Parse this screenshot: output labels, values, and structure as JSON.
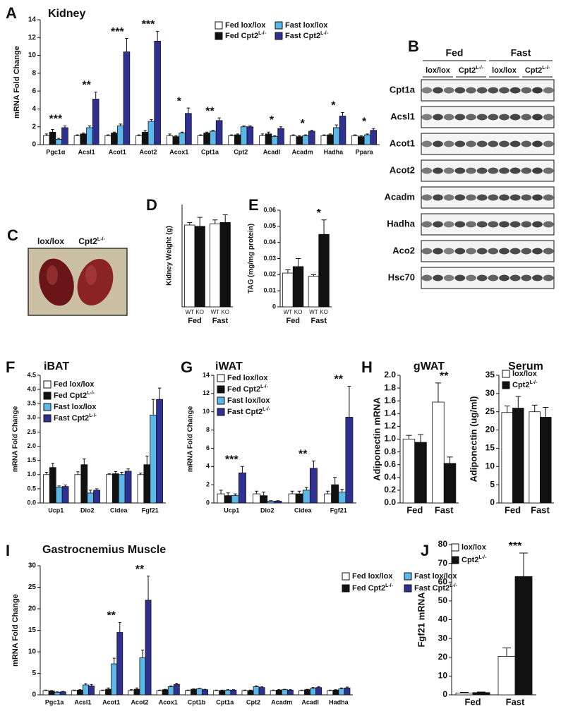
{
  "chart_data": [
    {
      "type": "bar",
      "panel": "A",
      "title": "Kidney",
      "title_color": "#e8262b",
      "ylabel": "mRNA Fold Change",
      "categories": [
        "Pgc1α",
        "Acsl1",
        "Acot1",
        "Acot2",
        "Acox1",
        "Cpt1a",
        "Cpt2",
        "Acadl",
        "Acadm",
        "Hadha",
        "Ppara"
      ],
      "series": [
        {
          "name": "Fed lox/lox",
          "color": "#ffffff",
          "values": [
            1.0,
            1.0,
            1.0,
            1.0,
            1.0,
            1.0,
            1.0,
            1.0,
            1.0,
            1.0,
            1.0
          ],
          "errors": [
            0.2,
            0.1,
            0.1,
            0.1,
            0.2,
            0.1,
            0.1,
            0.2,
            0.1,
            0.1,
            0.1
          ]
        },
        {
          "name": "Fed Cpt2",
          "superscript": "L-/-",
          "color": "#111111",
          "values": [
            1.4,
            1.2,
            1.3,
            1.4,
            0.9,
            1.3,
            1.1,
            1.2,
            0.9,
            1.1,
            0.9
          ],
          "errors": [
            0.3,
            0.1,
            0.1,
            0.2,
            0.1,
            0.1,
            0.1,
            0.2,
            0.1,
            0.1,
            0.1
          ]
        },
        {
          "name": "Fast lox/lox",
          "color": "#5bb8e8",
          "values": [
            0.6,
            1.9,
            2.1,
            2.6,
            1.3,
            1.5,
            2.0,
            0.9,
            1.0,
            1.9,
            1.1
          ],
          "errors": [
            0.1,
            0.2,
            0.2,
            0.2,
            0.1,
            0.1,
            0.1,
            0.1,
            0.1,
            0.3,
            0.1
          ]
        },
        {
          "name": "Fast Cpt2",
          "superscript": "L-/-",
          "color": "#2e3192",
          "values": [
            1.9,
            5.1,
            10.4,
            11.6,
            3.5,
            2.7,
            2.0,
            1.8,
            1.5,
            3.2,
            1.6
          ],
          "errors": [
            0.2,
            0.8,
            1.5,
            1.1,
            0.6,
            0.3,
            0.1,
            0.2,
            0.1,
            0.4,
            0.2
          ]
        }
      ],
      "stars": [
        "***",
        "**",
        "***",
        "***",
        "*",
        "**",
        null,
        "*",
        "*",
        "*",
        "*"
      ],
      "ylim": [
        0,
        14
      ],
      "yticks": [
        0,
        2,
        4,
        6,
        8,
        10,
        12,
        14
      ],
      "legend": "top-right"
    },
    {
      "type": "bar",
      "panel": "D",
      "ylabel": "Kidney Weight (g)",
      "categories": [
        "Fed",
        "Fast"
      ],
      "series": [
        {
          "name": "WT",
          "color": "#ffffff",
          "values": [
            0.64,
            0.65
          ],
          "errors": [
            0.02,
            0.03
          ]
        },
        {
          "name": "KO",
          "color": "#111111",
          "values": [
            0.63,
            0.66
          ],
          "errors": [
            0.07,
            0.06
          ]
        }
      ],
      "stars": [
        null,
        null
      ],
      "ylim": [
        0,
        0.8
      ],
      "legend": "under-bars"
    },
    {
      "type": "bar",
      "panel": "E",
      "ylabel": "TAG (mg/mg protein)",
      "categories": [
        "Fed",
        "Fast"
      ],
      "series": [
        {
          "name": "WT",
          "color": "#ffffff",
          "values": [
            0.021,
            0.019
          ],
          "errors": [
            0.002,
            0.001
          ]
        },
        {
          "name": "KO",
          "color": "#111111",
          "values": [
            0.025,
            0.045
          ],
          "errors": [
            0.005,
            0.009
          ]
        }
      ],
      "stars": [
        null,
        "*"
      ],
      "ylim": [
        0,
        0.06
      ],
      "yticks": [
        0,
        0.01,
        0.02,
        0.03,
        0.04,
        0.05,
        0.06
      ],
      "legend": "under-bars"
    },
    {
      "type": "bar",
      "panel": "F",
      "title": "iBAT",
      "title_color": "#e8262b",
      "ylabel": "mRNA Fold Change",
      "categories": [
        "Ucp1",
        "Dio2",
        "Cidea",
        "Fgf21"
      ],
      "series": [
        {
          "name": "Fed lox/lox",
          "color": "#ffffff",
          "values": [
            1.0,
            1.0,
            1.0,
            1.0
          ],
          "errors": [
            0.08,
            0.1,
            0.03,
            0.05
          ]
        },
        {
          "name": "Fed Cpt2",
          "superscript": "L-/-",
          "color": "#111111",
          "values": [
            1.25,
            1.35,
            1.03,
            1.35
          ],
          "errors": [
            0.15,
            0.2,
            0.08,
            0.3
          ]
        },
        {
          "name": "Fast lox/lox",
          "color": "#5bb8e8",
          "values": [
            0.55,
            0.35,
            1.0,
            3.1
          ],
          "errors": [
            0.05,
            0.1,
            0.08,
            0.55
          ]
        },
        {
          "name": "Fast Cpt2",
          "superscript": "L-/-",
          "color": "#2e3192",
          "values": [
            0.58,
            0.45,
            1.12,
            3.65
          ],
          "errors": [
            0.05,
            0.05,
            0.08,
            0.4
          ]
        }
      ],
      "stars": [
        null,
        null,
        null,
        null
      ],
      "ylim": [
        0,
        4.5
      ],
      "yticks": [
        {
          "value": 0,
          "label": "0.0"
        },
        0.5,
        {
          "value": 1,
          "label": "1.0"
        },
        1.5,
        {
          "value": 2,
          "label": "2.0"
        },
        2.5,
        {
          "value": 3,
          "label": "3.0"
        },
        3.5,
        {
          "value": 4,
          "label": "4.0"
        },
        4.5
      ],
      "legend": "top-left"
    },
    {
      "type": "bar",
      "panel": "G",
      "title": "iWAT",
      "title_color": "#e8262b",
      "ylabel": "mRNA Fold Change",
      "categories": [
        "Ucp1",
        "Dio2",
        "Cidea",
        "Fgf21"
      ],
      "series": [
        {
          "name": "Fed lox/lox",
          "color": "#ffffff",
          "values": [
            1.0,
            1.0,
            1.0,
            1.0
          ],
          "errors": [
            0.4,
            0.3,
            0.3,
            0.3
          ]
        },
        {
          "name": "Fed Cpt2",
          "superscript": "L-/-",
          "color": "#111111",
          "values": [
            0.8,
            0.8,
            1.0,
            2.0
          ],
          "errors": [
            0.3,
            0.4,
            0.3,
            0.8
          ]
        },
        {
          "name": "Fast lox/lox",
          "color": "#5bb8e8",
          "values": [
            0.8,
            0.2,
            1.4,
            1.2
          ],
          "errors": [
            0.2,
            0.05,
            0.3,
            0.3
          ]
        },
        {
          "name": "Fast Cpt2",
          "superscript": "L-/-",
          "color": "#2e3192",
          "values": [
            3.3,
            0.2,
            3.8,
            9.4
          ],
          "errors": [
            0.7,
            0.05,
            0.8,
            3.4
          ]
        }
      ],
      "stars": [
        "***",
        null,
        "**",
        "**"
      ],
      "ylim": [
        0,
        14
      ],
      "yticks": [
        0,
        2,
        4,
        6,
        8,
        10,
        12,
        14
      ],
      "legend": "top-left"
    },
    {
      "type": "bar",
      "panel": "H",
      "title": "gWAT",
      "title_color": "#e8262b",
      "ylabel": "Adiponectin mRNA",
      "categories": [
        "Fed",
        "Fast"
      ],
      "series": [
        {
          "color": "#ffffff",
          "values": [
            1.0,
            1.58
          ],
          "errors": [
            0.06,
            0.3
          ]
        },
        {
          "color": "#111111",
          "values": [
            0.95,
            0.62
          ],
          "errors": [
            0.12,
            0.1
          ]
        }
      ],
      "stars": [
        null,
        "**"
      ],
      "ylim": [
        0,
        2
      ],
      "yticks": [
        {
          "value": 0,
          "label": "0.0"
        },
        0.2,
        0.4,
        0.6,
        0.8,
        {
          "value": 1,
          "label": "1.0"
        },
        1.2,
        1.4,
        1.6,
        1.8,
        {
          "value": 2,
          "label": "2.0"
        }
      ],
      "legend": "none"
    },
    {
      "type": "bar",
      "title": "Serum",
      "title_color": "#e8262b",
      "ylabel": "Adiponectin (ug/ml)",
      "categories": [
        "Fed",
        "Fast"
      ],
      "series": [
        {
          "name": "lox/lox",
          "color": "#ffffff",
          "values": [
            24.8,
            25.0
          ],
          "errors": [
            1.8,
            1.8
          ]
        },
        {
          "name": "Cpt2",
          "superscript": "L-/-",
          "color": "#111111",
          "values": [
            26.0,
            23.5
          ],
          "errors": [
            3.2,
            2.7
          ]
        }
      ],
      "stars": [
        null,
        null
      ],
      "ylim": [
        0,
        35
      ],
      "yticks": [
        0,
        5,
        10,
        15,
        20,
        25,
        30,
        35
      ],
      "legend": "top-left"
    },
    {
      "type": "bar",
      "panel": "I",
      "title": "Gastrocnemius Muscle",
      "title_color": "#e8262b",
      "ylabel": "mRNA Fold Change",
      "categories": [
        "Pgc1a",
        "Acsl1",
        "Acot1",
        "Acot2",
        "Acox1",
        "Cpt1b",
        "Cpt1a",
        "Cpt2",
        "Acadm",
        "Acadl",
        "Hadha"
      ],
      "series": [
        {
          "name": "Fed lox/lox",
          "color": "#ffffff",
          "values": [
            1.0,
            1.0,
            1.0,
            1.0,
            1.0,
            1.0,
            1.0,
            1.0,
            1.0,
            1.0,
            1.0
          ],
          "errors": [
            0.1,
            0.1,
            0.1,
            0.2,
            0.1,
            0.1,
            0.1,
            0.1,
            0.1,
            0.1,
            0.1
          ]
        },
        {
          "name": "Fed Cpt2",
          "superscript": "L-/-",
          "color": "#111111",
          "values": [
            0.9,
            1.1,
            1.3,
            1.3,
            1.2,
            1.3,
            1.0,
            1.0,
            1.1,
            1.2,
            1.1
          ],
          "errors": [
            0.1,
            0.1,
            0.3,
            0.3,
            0.1,
            0.1,
            0.1,
            0.1,
            0.1,
            0.1,
            0.1
          ]
        },
        {
          "name": "Fast lox/lox",
          "color": "#5bb8e8",
          "values": [
            0.6,
            2.3,
            7.2,
            8.6,
            1.9,
            1.4,
            1.1,
            1.9,
            1.2,
            1.5,
            1.4
          ],
          "errors": [
            0.1,
            0.3,
            1.3,
            1.8,
            0.2,
            0.1,
            0.1,
            0.2,
            0.1,
            0.2,
            0.2
          ]
        },
        {
          "name": "Fast Cpt2",
          "superscript": "L-/-",
          "color": "#2e3192",
          "values": [
            0.7,
            2.1,
            14.5,
            22.0,
            2.4,
            1.2,
            1.1,
            1.7,
            1.1,
            1.7,
            1.6
          ],
          "errors": [
            0.1,
            0.3,
            2.3,
            5.6,
            0.3,
            0.1,
            0.1,
            0.2,
            0.1,
            0.2,
            0.2
          ]
        }
      ],
      "stars": [
        null,
        null,
        "**",
        "**",
        null,
        null,
        null,
        null,
        null,
        null,
        null
      ],
      "ylim": [
        0,
        30
      ],
      "yticks": [
        0,
        5,
        10,
        15,
        20,
        25,
        30
      ],
      "legend": "top-right"
    },
    {
      "type": "bar",
      "panel": "J",
      "ylabel": "Fgf21 mRNA",
      "categories": [
        "Fed",
        "Fast"
      ],
      "series": [
        {
          "name": "lox/lox",
          "color": "#ffffff",
          "values": [
            1.0,
            20.5
          ],
          "errors": [
            0.3,
            4.5
          ]
        },
        {
          "name": "Cpt2",
          "superscript": "L-/-",
          "color": "#111111",
          "values": [
            1.2,
            63.0
          ],
          "errors": [
            0.3,
            12.5
          ]
        }
      ],
      "stars": [
        null,
        "***"
      ],
      "ylim": [
        0,
        80
      ],
      "yticks": [
        0,
        10,
        20,
        30,
        40,
        50,
        60,
        70,
        80
      ],
      "legend": "top-left"
    }
  ],
  "blot": {
    "panel": "B",
    "conditions": [
      "Fed",
      "Fast"
    ],
    "genotypes": [
      {
        "name": "lox/lox"
      },
      {
        "name": "Cpt2",
        "superscript": "L-/-"
      },
      {
        "name": "lox/lox"
      },
      {
        "name": "Cpt2",
        "superscript": "L-/-"
      }
    ],
    "proteins": [
      "Cpt1a",
      "Acsl1",
      "Acot1",
      "Acot2",
      "Acadm",
      "Hadha",
      "Aco2",
      "Hsc70"
    ]
  },
  "photo": {
    "panel": "C",
    "labels": [
      {
        "name": "lox/lox"
      },
      {
        "name": "Cpt2",
        "superscript": "L-/-"
      }
    ]
  }
}
